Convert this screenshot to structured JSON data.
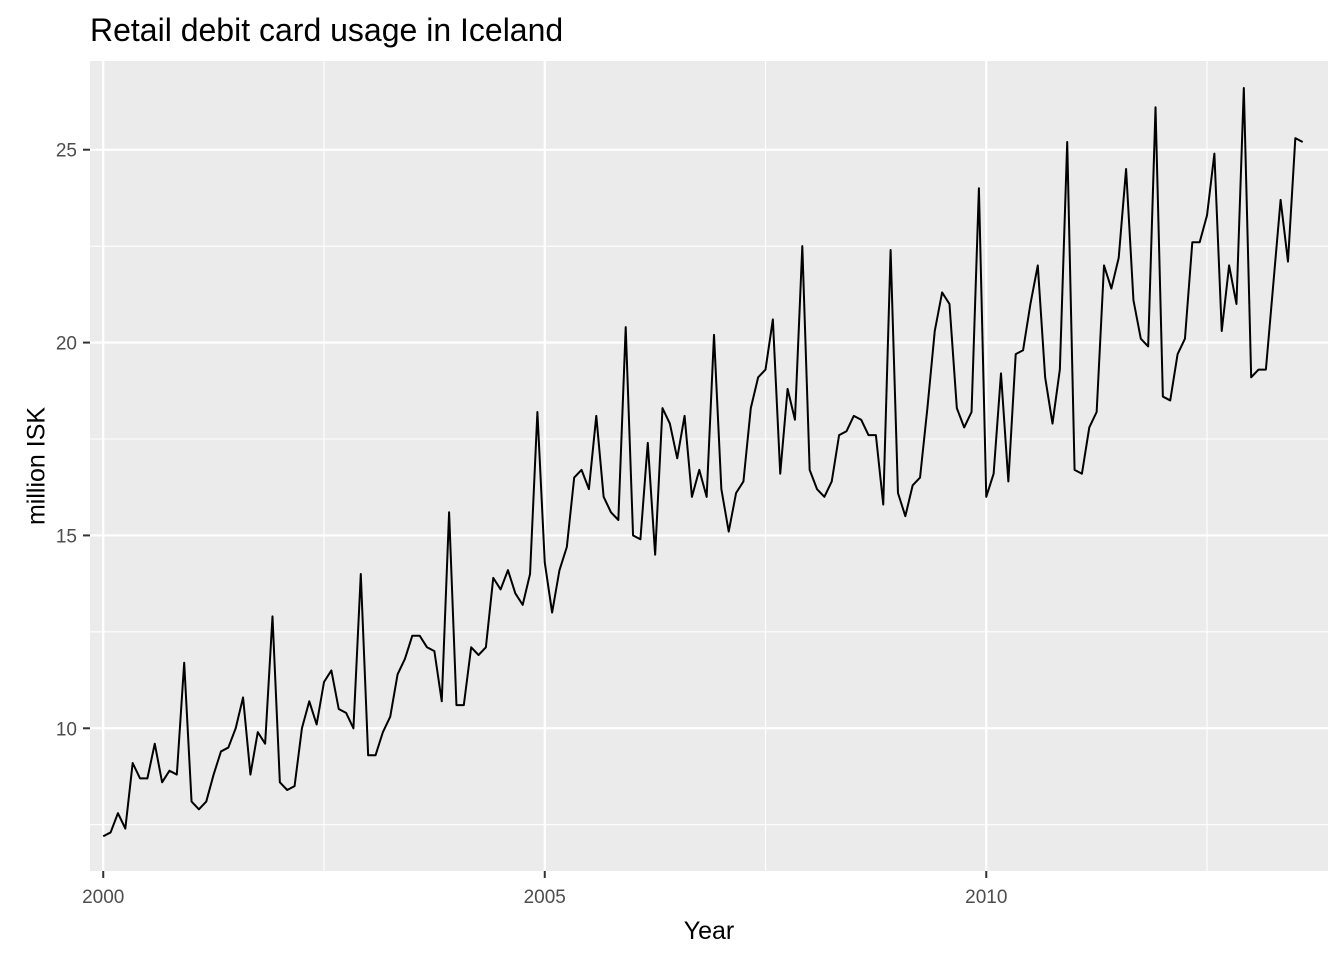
{
  "chart_data": {
    "type": "line",
    "title": "Retail debit card usage in Iceland",
    "xlabel": "Year",
    "ylabel": "million ISK",
    "xlim": [
      1999.85,
      2013.87
    ],
    "ylim": [
      6.3,
      27.3
    ],
    "x_ticks": [
      2000,
      2005,
      2010
    ],
    "x_tick_labels": [
      "2000",
      "2005",
      "2010"
    ],
    "y_ticks": [
      10,
      15,
      20,
      25
    ],
    "y_tick_labels": [
      "10",
      "15",
      "20",
      "25"
    ],
    "grid": true,
    "background": "#ebebeb",
    "line_color": "#000000",
    "series": [
      {
        "start": 2000.0,
        "frequency": 12,
        "values": [
          7.2,
          7.3,
          7.8,
          7.4,
          9.1,
          8.7,
          8.7,
          9.6,
          8.6,
          8.9,
          8.8,
          11.7,
          8.1,
          7.9,
          8.1,
          8.8,
          9.4,
          9.5,
          10.0,
          10.8,
          8.8,
          9.9,
          9.6,
          12.9,
          8.6,
          8.4,
          8.5,
          10.0,
          10.7,
          10.1,
          11.2,
          11.5,
          10.5,
          10.4,
          10.0,
          14.0,
          9.3,
          9.3,
          9.9,
          10.3,
          11.4,
          11.8,
          12.4,
          12.4,
          12.1,
          12.0,
          10.7,
          15.6,
          10.6,
          10.6,
          12.1,
          11.9,
          12.1,
          13.9,
          13.6,
          14.1,
          13.5,
          13.2,
          14.0,
          18.2,
          14.3,
          13.0,
          14.1,
          14.7,
          16.5,
          16.7,
          16.2,
          18.1,
          16.0,
          15.6,
          15.4,
          20.4,
          15.0,
          14.9,
          17.4,
          14.5,
          18.3,
          17.9,
          17.0,
          18.1,
          16.0,
          16.7,
          16.0,
          20.2,
          16.2,
          15.1,
          16.1,
          16.4,
          18.3,
          19.1,
          19.3,
          20.6,
          16.6,
          18.8,
          18.0,
          22.5,
          16.7,
          16.2,
          16.0,
          16.4,
          17.6,
          17.7,
          18.1,
          18.0,
          17.6,
          17.6,
          15.8,
          22.4,
          16.1,
          15.5,
          16.3,
          16.5,
          18.3,
          20.3,
          21.3,
          21.0,
          18.3,
          17.8,
          18.2,
          24.0,
          16.0,
          16.6,
          19.2,
          16.4,
          19.7,
          19.8,
          21.0,
          22.0,
          19.1,
          17.9,
          19.3,
          25.2,
          16.7,
          16.6,
          17.8,
          18.2,
          22.0,
          21.4,
          22.2,
          24.5,
          21.1,
          20.1,
          19.9,
          26.1,
          18.6,
          18.5,
          19.7,
          20.1,
          22.6,
          22.6,
          23.3,
          24.9,
          20.3,
          22.0,
          21.0,
          26.6,
          19.1,
          19.3,
          19.3,
          21.5,
          23.7,
          22.1,
          25.3,
          25.2
        ]
      }
    ]
  }
}
